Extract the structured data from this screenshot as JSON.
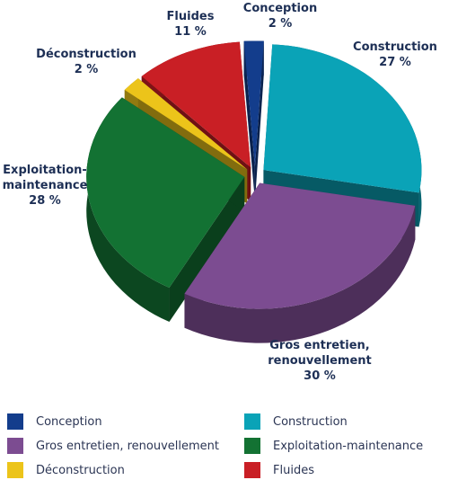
{
  "chart_data": {
    "type": "pie",
    "categories": [
      "Conception",
      "Construction",
      "Gros entretien, renouvellement",
      "Exploitation-maintenance",
      "Déconstruction",
      "Fluides"
    ],
    "values": [
      2,
      27,
      30,
      28,
      2,
      11
    ],
    "unit": "%",
    "legend_placement": "bottom",
    "slice_labels": [
      [
        "Conception",
        "2 %"
      ],
      [
        "Construction",
        "27 %"
      ],
      [
        "Gros entretien,",
        "renouvellement",
        "30 %"
      ],
      [
        "Exploitation-",
        "maintenance",
        "28 %"
      ],
      [
        "Déconstruction",
        "2 %"
      ],
      [
        "Fluides",
        "11 %"
      ]
    ],
    "colors": [
      "#133d8c",
      "#0aa3b7",
      "#7c4c91",
      "#137233",
      "#ecc41a",
      "#c91f25"
    ]
  },
  "legend": {
    "items": [
      {
        "label": "Conception",
        "color": "#133d8c"
      },
      {
        "label": "Construction",
        "color": "#0aa3b7"
      },
      {
        "label": "Gros entretien, renouvellement",
        "color": "#7c4c91"
      },
      {
        "label": "Exploitation-maintenance",
        "color": "#137233"
      },
      {
        "label": "Déconstruction",
        "color": "#ecc41a"
      },
      {
        "label": "Fluides",
        "color": "#c91f25"
      }
    ]
  }
}
